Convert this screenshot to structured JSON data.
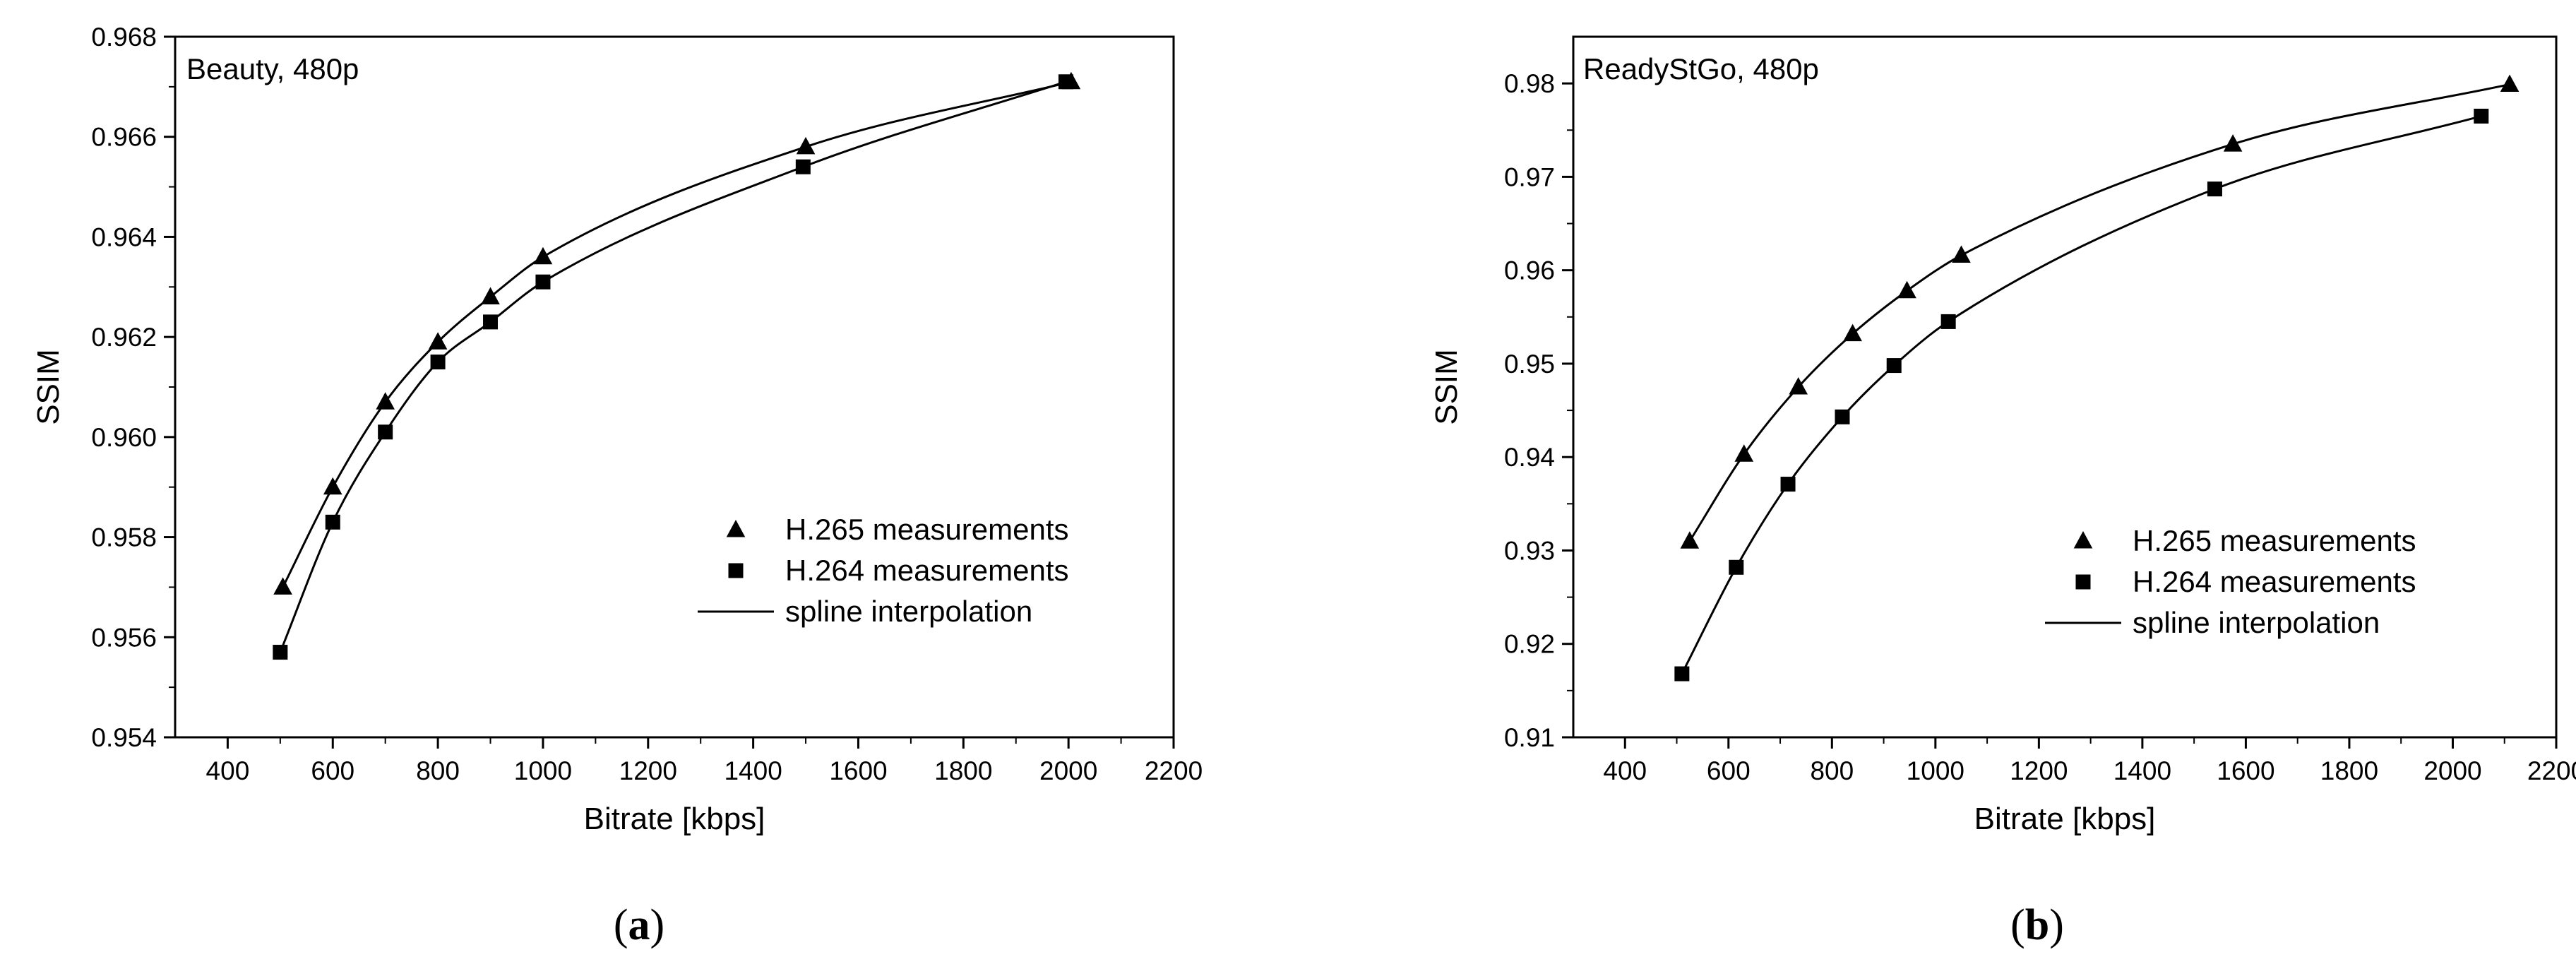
{
  "chart_data": [
    {
      "type": "line",
      "panel_label": "a",
      "title": "Beauty, 480p",
      "xlabel": "Bitrate [kbps]",
      "ylabel": "SSIM",
      "xlim": [
        300,
        2200
      ],
      "ylim": [
        0.954,
        0.968
      ],
      "xticks": [
        400,
        600,
        800,
        1000,
        1200,
        1400,
        1600,
        1800,
        2000,
        2200
      ],
      "yticks": [
        0.954,
        0.956,
        0.958,
        0.96,
        0.962,
        0.964,
        0.966,
        0.968
      ],
      "ytick_decimals": 3,
      "legend_position": "bottom-right",
      "series": [
        {
          "name": "H.265 measurements",
          "marker": "triangle",
          "x": [
            505,
            600,
            700,
            800,
            900,
            1000,
            1500,
            2005
          ],
          "y": [
            0.957,
            0.959,
            0.9607,
            0.9619,
            0.9628,
            0.9636,
            0.9658,
            0.9671
          ]
        },
        {
          "name": "H.264 measurements",
          "marker": "square",
          "x": [
            500,
            600,
            700,
            800,
            900,
            1000,
            1495,
            1995
          ],
          "y": [
            0.9557,
            0.9583,
            0.9601,
            0.9615,
            0.9623,
            0.9631,
            0.9654,
            0.9671
          ]
        }
      ],
      "line_legend": "spline interpolation"
    },
    {
      "type": "line",
      "panel_label": "b",
      "title": "ReadyStGo, 480p",
      "xlabel": "Bitrate [kbps]",
      "ylabel": "SSIM",
      "xlim": [
        300,
        2200
      ],
      "ylim": [
        0.91,
        0.985
      ],
      "xticks": [
        400,
        600,
        800,
        1000,
        1200,
        1400,
        1600,
        1800,
        2000,
        2200
      ],
      "yticks": [
        0.91,
        0.92,
        0.93,
        0.94,
        0.95,
        0.96,
        0.97,
        0.98
      ],
      "ytick_decimals": 2,
      "legend_position": "bottom-right",
      "series": [
        {
          "name": "H.265 measurements",
          "marker": "triangle",
          "x": [
            525,
            630,
            735,
            840,
            945,
            1050,
            1575,
            2110
          ],
          "y": [
            0.931,
            0.9403,
            0.9475,
            0.9532,
            0.9578,
            0.9616,
            0.9735,
            0.9799
          ]
        },
        {
          "name": "H.264 measurements",
          "marker": "square",
          "x": [
            510,
            615,
            715,
            820,
            920,
            1025,
            1540,
            2055
          ],
          "y": [
            0.9168,
            0.9282,
            0.9371,
            0.9443,
            0.9498,
            0.9545,
            0.9687,
            0.9765
          ]
        }
      ],
      "line_legend": "spline interpolation"
    }
  ]
}
